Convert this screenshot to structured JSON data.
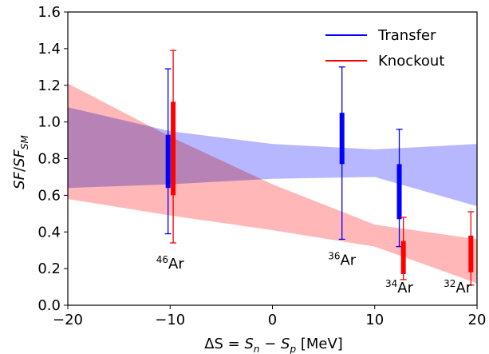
{
  "chart_data": {
    "type": "scatter",
    "xlabel": "ΔS = S_n − S_p [MeV]",
    "ylabel": "SF/SF_SM",
    "xlim": [
      -20,
      20
    ],
    "ylim": [
      0.0,
      1.6
    ],
    "xticks": [
      -20,
      -10,
      0,
      10,
      20
    ],
    "xtick_labels": [
      "−20",
      "−10",
      "0",
      "10",
      "20"
    ],
    "yticks": [
      0.0,
      0.2,
      0.4,
      0.6,
      0.8,
      1.0,
      1.2,
      1.4,
      1.6
    ],
    "ytick_labels": [
      "0.0",
      "0.2",
      "0.4",
      "0.6",
      "0.8",
      "1.0",
      "1.2",
      "1.4",
      "1.6"
    ],
    "grid": false,
    "legend_position": "top-right",
    "colors": {
      "transfer": "#0000ff",
      "knockout": "#ff0000",
      "transfer_band": "#aaaaff",
      "knockout_band": "#ffaaaa"
    },
    "bands": [
      {
        "name": "Transfer",
        "x": [
          -20,
          -10,
          0,
          10,
          20
        ],
        "lower": [
          0.64,
          0.66,
          0.69,
          0.7,
          0.54
        ],
        "upper": [
          1.08,
          0.95,
          0.88,
          0.85,
          0.88
        ]
      },
      {
        "name": "Knockout",
        "x": [
          -20,
          -10,
          0,
          10,
          20
        ],
        "lower": [
          0.58,
          0.49,
          0.41,
          0.32,
          0.12
        ],
        "upper": [
          1.21,
          0.92,
          0.66,
          0.44,
          0.36
        ]
      }
    ],
    "series": [
      {
        "name": "Transfer",
        "points": [
          {
            "x": -10.2,
            "sys_lo": 0.64,
            "sys_hi": 0.93,
            "tot_lo": 0.39,
            "tot_hi": 1.29
          },
          {
            "x": 6.8,
            "sys_lo": 0.77,
            "sys_hi": 1.05,
            "tot_lo": 0.36,
            "tot_hi": 1.3
          },
          {
            "x": 12.4,
            "sys_lo": 0.47,
            "sys_hi": 0.77,
            "tot_lo": 0.32,
            "tot_hi": 0.96
          }
        ]
      },
      {
        "name": "Knockout",
        "points": [
          {
            "x": -9.7,
            "sys_lo": 0.6,
            "sys_hi": 1.11,
            "tot_lo": 0.34,
            "tot_hi": 1.39
          },
          {
            "x": 12.8,
            "sys_lo": 0.17,
            "sys_hi": 0.35,
            "tot_lo": 0.14,
            "tot_hi": 0.48
          },
          {
            "x": 19.4,
            "sys_lo": 0.18,
            "sys_hi": 0.38,
            "tot_lo": 0.11,
            "tot_hi": 0.51
          }
        ]
      }
    ],
    "annotations": [
      {
        "mass": "46",
        "element": "Ar",
        "x": -10.0,
        "y": 0.2
      },
      {
        "mass": "36",
        "element": "Ar",
        "x": 6.8,
        "y": 0.22
      },
      {
        "mass": "34",
        "element": "Ar",
        "x": 12.4,
        "y": 0.07
      },
      {
        "mass": "32",
        "element": "Ar",
        "x": 18.1,
        "y": 0.07
      }
    ]
  }
}
